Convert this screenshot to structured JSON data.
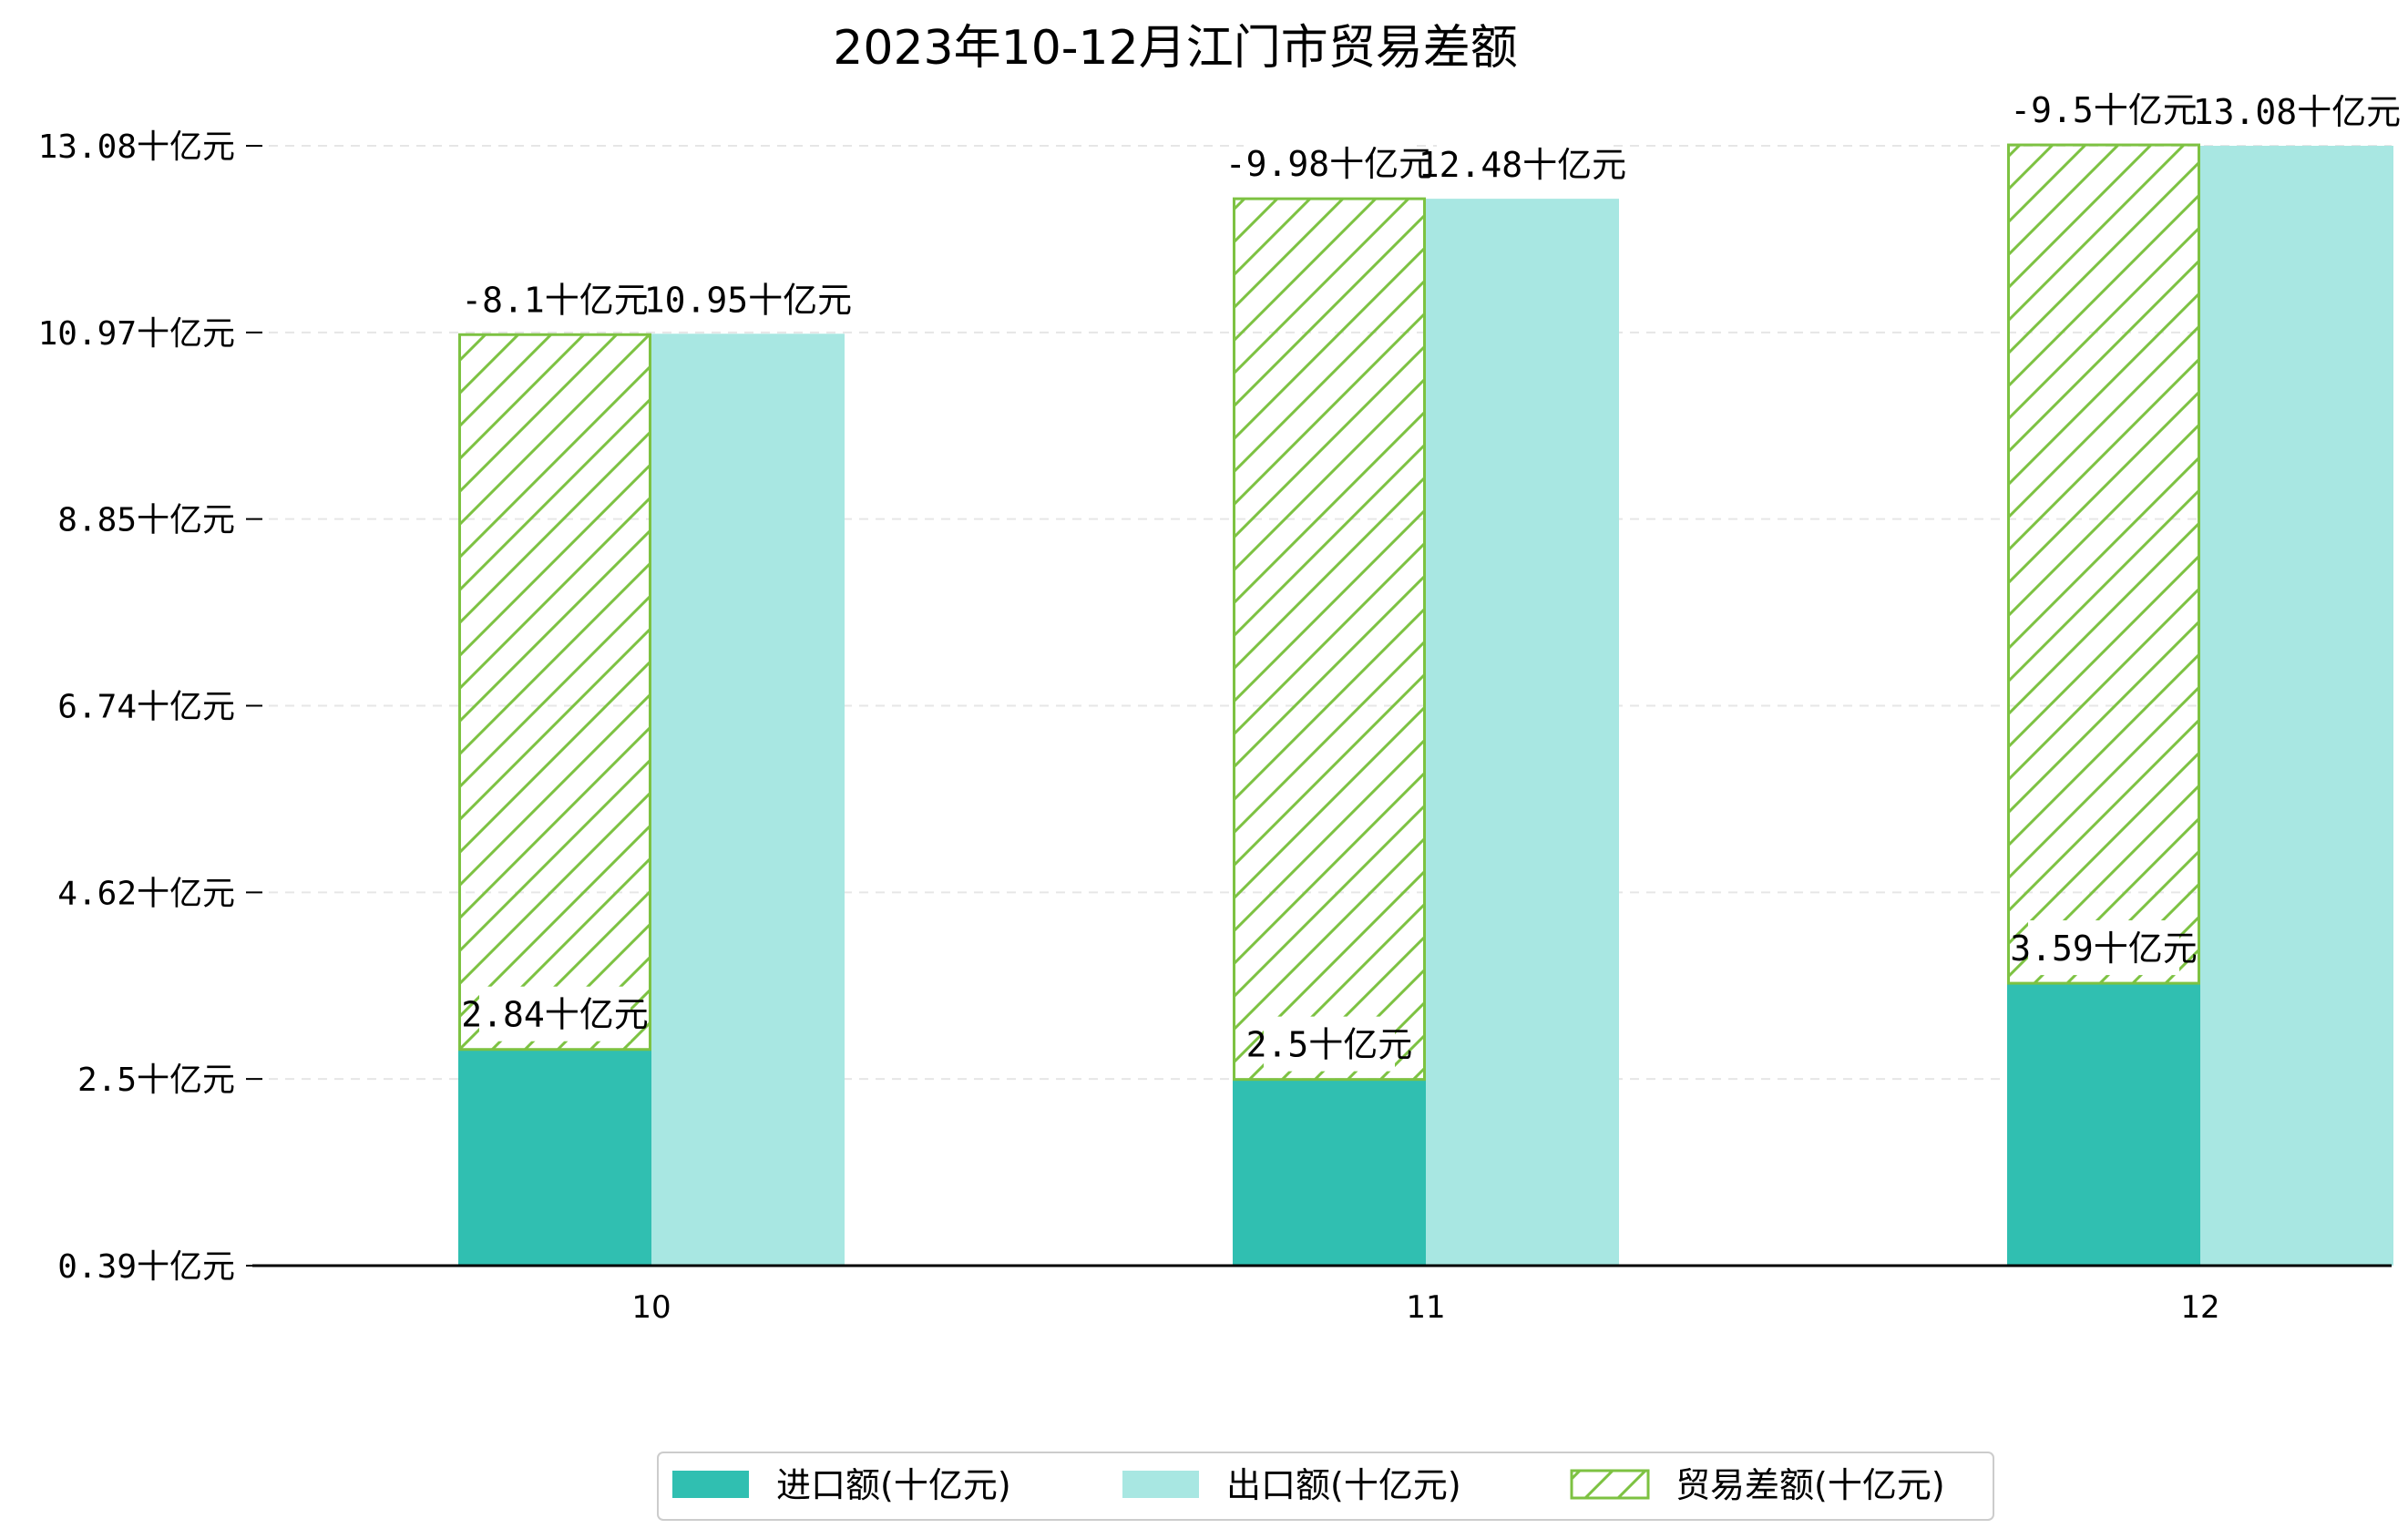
{
  "chart_data": {
    "type": "bar",
    "title": "2023年10-12月江门市贸易差额",
    "categories": [
      "10",
      "11",
      "12"
    ],
    "ytick_labels": [
      "0.39十亿元",
      "2.5十亿元",
      "4.62十亿元",
      "6.74十亿元",
      "8.85十亿元",
      "10.97十亿元",
      "13.08十亿元"
    ],
    "ylim": [
      0.39,
      13.08
    ],
    "grid": "horizontal-dashed",
    "legend_position": "bottom-center",
    "series": [
      {
        "name": "进口额(十亿元)",
        "color": "#30bfb1",
        "values": [
          2.84,
          2.5,
          3.59
        ],
        "labels": [
          "2.84十亿元",
          "2.5十亿元",
          "3.59十亿元"
        ]
      },
      {
        "name": "出口额(十亿元)",
        "color": "#a8e7e2",
        "values": [
          10.95,
          12.48,
          13.08
        ],
        "labels": [
          "10.95十亿元",
          "12.48十亿元",
          "13.08十亿元"
        ]
      },
      {
        "name": "贸易差额(十亿元)",
        "color": "#7dc242",
        "hatch": "diagonal",
        "stacked_on": "进口额(十亿元)",
        "values": [
          -8.1,
          -9.98,
          -9.5
        ],
        "labels": [
          "-8.1十亿元",
          "-9.98十亿元",
          "-9.5十亿元"
        ]
      }
    ]
  }
}
